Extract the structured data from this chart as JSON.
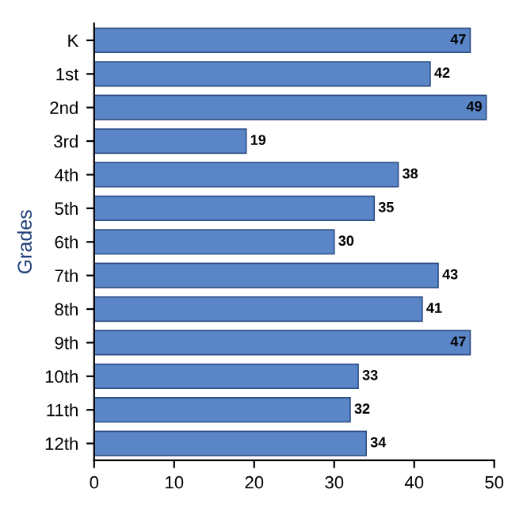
{
  "chart_data": {
    "type": "bar",
    "orientation": "horizontal",
    "ylabel": "Grades",
    "categories": [
      "K",
      "1st",
      "2nd",
      "3rd",
      "4th",
      "5th",
      "6th",
      "7th",
      "8th",
      "9th",
      "10th",
      "11th",
      "12th"
    ],
    "values": [
      47,
      42,
      49,
      19,
      38,
      35,
      30,
      43,
      41,
      47,
      33,
      32,
      34
    ],
    "color": "#5a86c8",
    "xlim": [
      0,
      50
    ],
    "xticks": [
      0,
      10,
      20,
      30,
      40,
      50
    ],
    "data_labels": true,
    "grid": false
  }
}
